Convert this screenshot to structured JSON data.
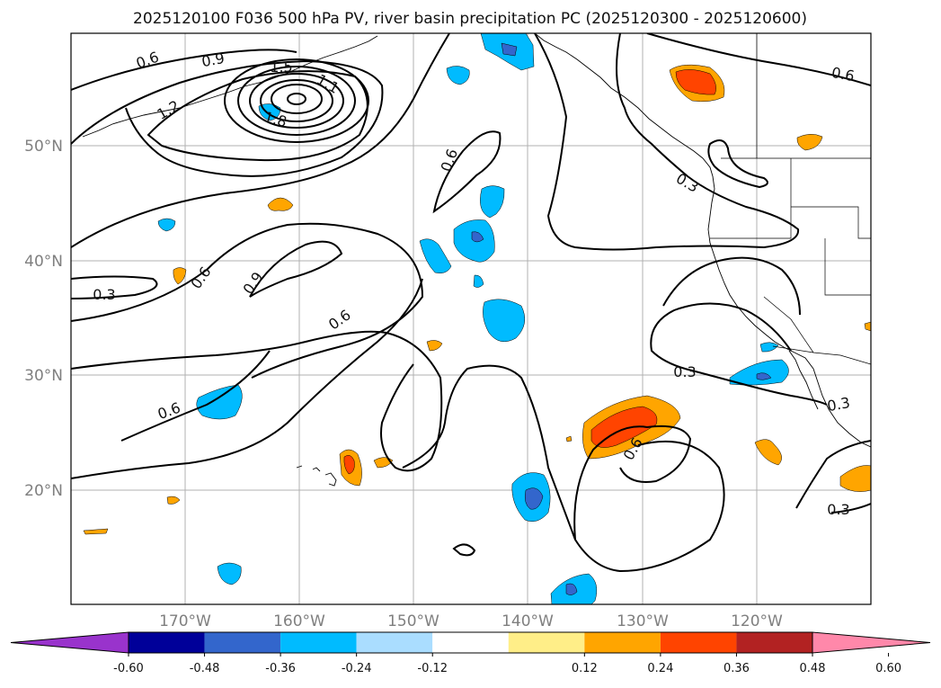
{
  "title": "2025120100 F036 500 hPa PV, river basin precipitation PC (2025120300 - 2025120600)",
  "axes": {
    "lat_labels": [
      "50°N",
      "40°N",
      "30°N",
      "20°N"
    ],
    "lon_labels": [
      "170°W",
      "160°W",
      "150°W",
      "140°W",
      "130°W",
      "120°W"
    ]
  },
  "contour_labels": [
    "0.6",
    "0.9",
    "1.5",
    "1.2",
    "1.8",
    "1.1",
    "0.6",
    "0.6",
    "0.3",
    "0.6",
    "0.9",
    "0.6",
    "0.3",
    "0.6",
    "0.6",
    "0.3",
    "0.3",
    "0.3",
    "0.6"
  ],
  "colorbar": {
    "tick_labels": [
      "-0.60",
      "-0.48",
      "-0.36",
      "-0.24",
      "-0.12",
      "0.12",
      "0.24",
      "0.36",
      "0.48",
      "0.60"
    ],
    "colors": {
      "below": "#9933cc",
      "b1": "#000099",
      "b2": "#3366cc",
      "b3": "#00bbff",
      "b4": "#aaddff",
      "mid": "#ffffff",
      "r1": "#ffee88",
      "r2": "#ffa500",
      "r3": "#ff4400",
      "r4": "#b22222",
      "above": "#ff88aa"
    }
  },
  "colors": {
    "grid": "#b0b0b0",
    "contour": "#000000",
    "coast": "#000000"
  }
}
